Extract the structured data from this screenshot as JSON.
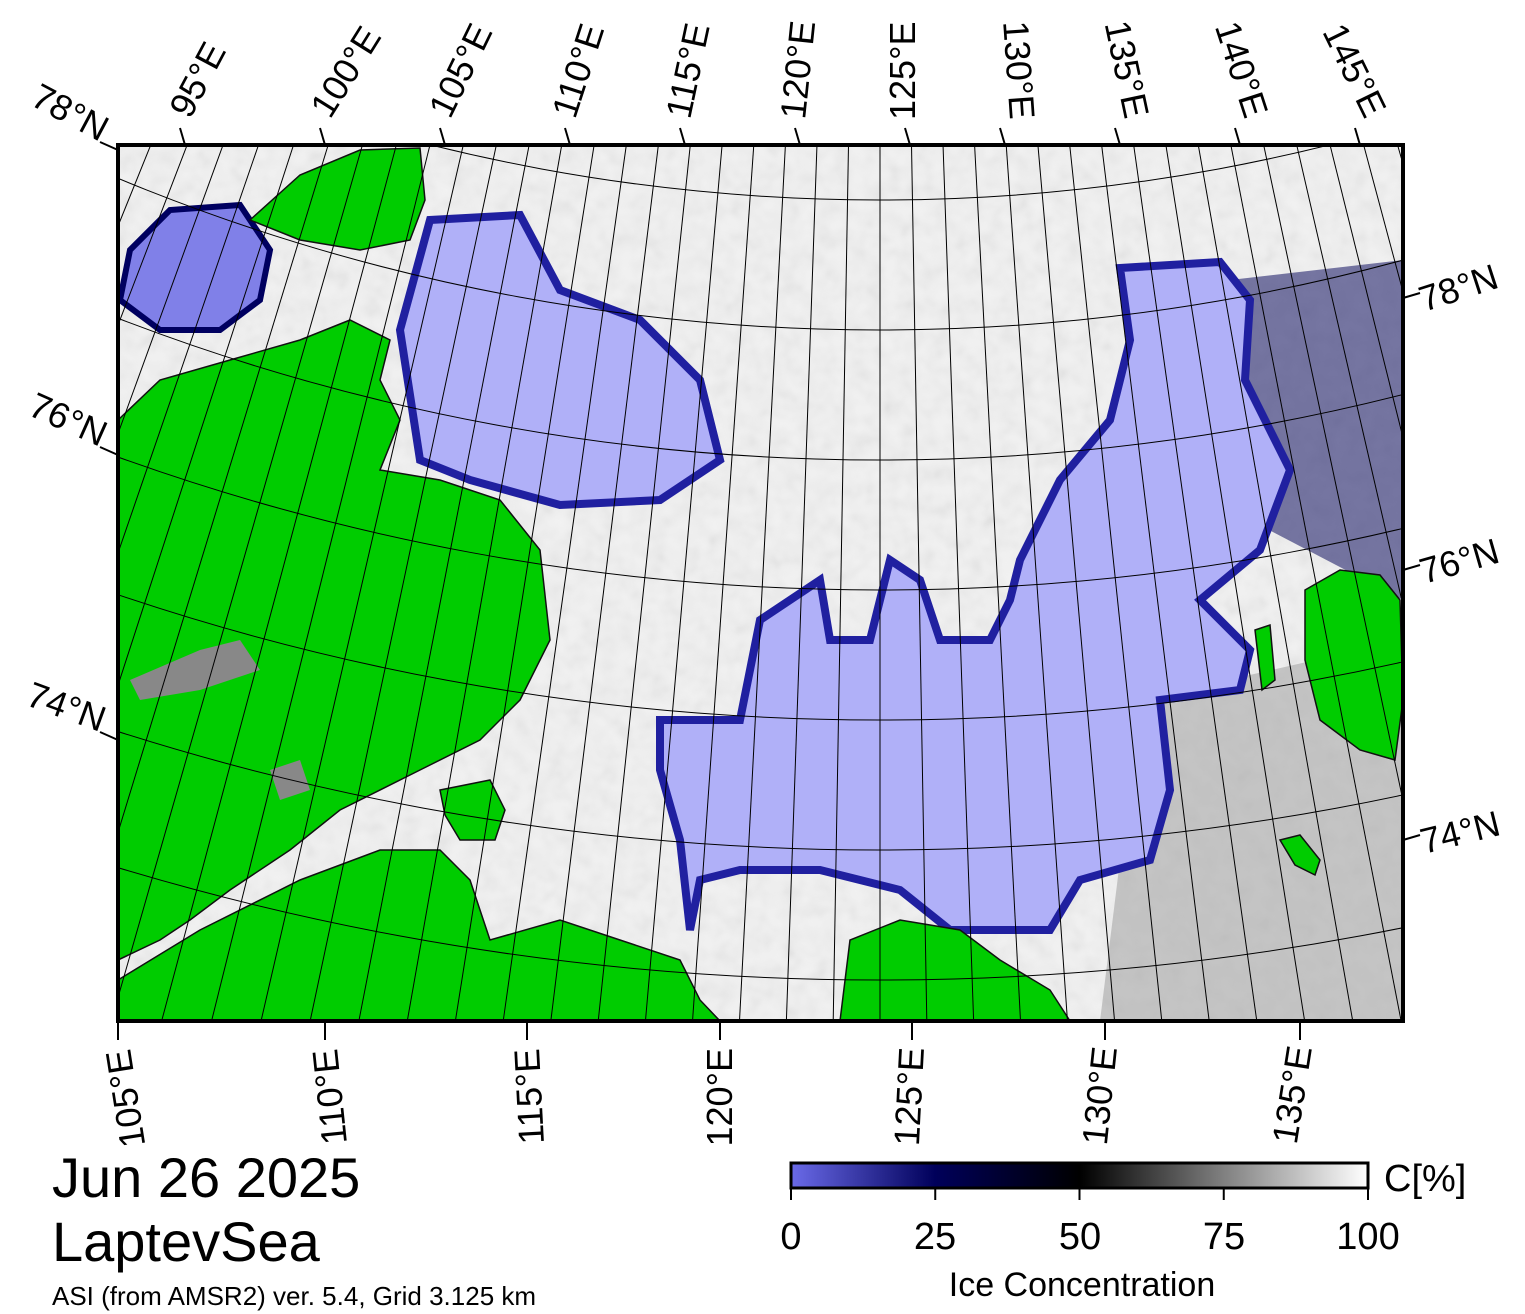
{
  "date": "Jun 26 2025",
  "region": "LaptevSea",
  "source": "ASI (from AMSR2) ver. 5.4,  Grid 3.125 km",
  "colorbar": {
    "title": "Ice Concentration",
    "unit": "C[%]",
    "ticks": [
      "0",
      "25",
      "50",
      "75",
      "100"
    ],
    "stops": [
      {
        "value": 0,
        "color": "#6a6ae8"
      },
      {
        "value": 25,
        "color": "#00005a"
      },
      {
        "value": 50,
        "color": "#000000"
      },
      {
        "value": 75,
        "color": "#808080"
      },
      {
        "value": 100,
        "color": "#ffffff"
      }
    ]
  },
  "colors": {
    "land": "#00cc00",
    "ice_free_water": "#b0b0f8",
    "coast_shelf": "#888888",
    "frame": "#000000"
  },
  "labels": {
    "top": [
      "95°E",
      "100°E",
      "105°E",
      "110°E",
      "115°E",
      "120°E",
      "125°E",
      "130°E",
      "135°E",
      "140°E",
      "145°E"
    ],
    "bottom": [
      "105°E",
      "110°E",
      "115°E",
      "120°E",
      "125°E",
      "130°E",
      "135°E"
    ],
    "left": [
      "78°N",
      "76°N",
      "74°N"
    ],
    "right": [
      "78°N",
      "76°N",
      "74°N"
    ]
  }
}
